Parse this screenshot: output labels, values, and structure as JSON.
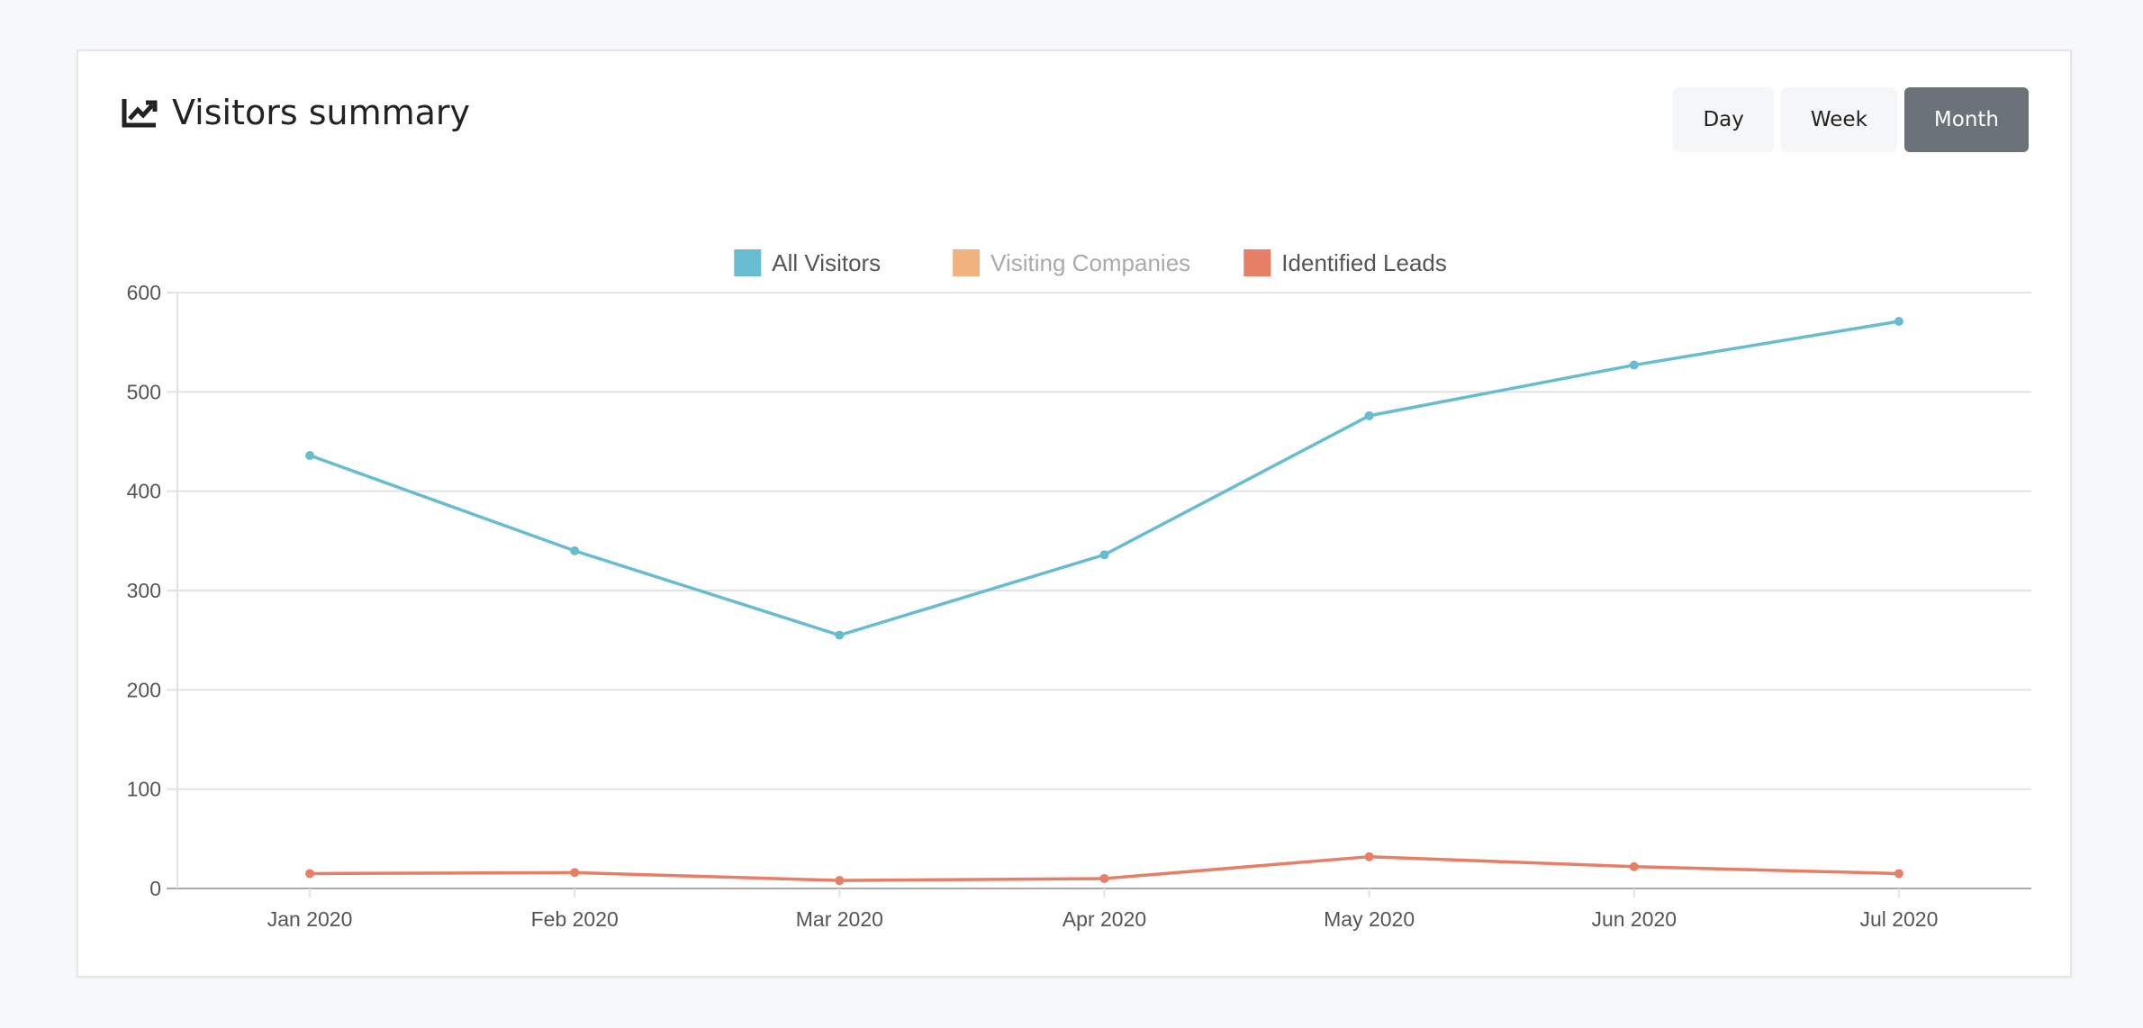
{
  "header": {
    "title": "Visitors summary",
    "buttons": [
      "Day",
      "Week",
      "Month"
    ],
    "active": "Month"
  },
  "chart_data": {
    "type": "line",
    "categories": [
      "Jan 2020",
      "Feb 2020",
      "Mar 2020",
      "Apr 2020",
      "May 2020",
      "Jun 2020",
      "Jul 2020"
    ],
    "series": [
      {
        "name": "All Visitors",
        "color": "#67bcd0",
        "values": [
          436,
          340,
          255,
          336,
          476,
          527,
          571
        ]
      },
      {
        "name": "Visiting Companies",
        "color": "#efaa72",
        "hidden": true,
        "values": [
          null,
          null,
          null,
          null,
          null,
          null,
          null
        ]
      },
      {
        "name": "Identified Leads",
        "color": "#e67f66",
        "values": [
          15,
          16,
          8,
          10,
          32,
          22,
          15
        ]
      }
    ],
    "ylim": [
      0,
      600
    ],
    "yticks": [
      0,
      100,
      200,
      300,
      400,
      500,
      600
    ],
    "grid": true,
    "legend": "top"
  }
}
